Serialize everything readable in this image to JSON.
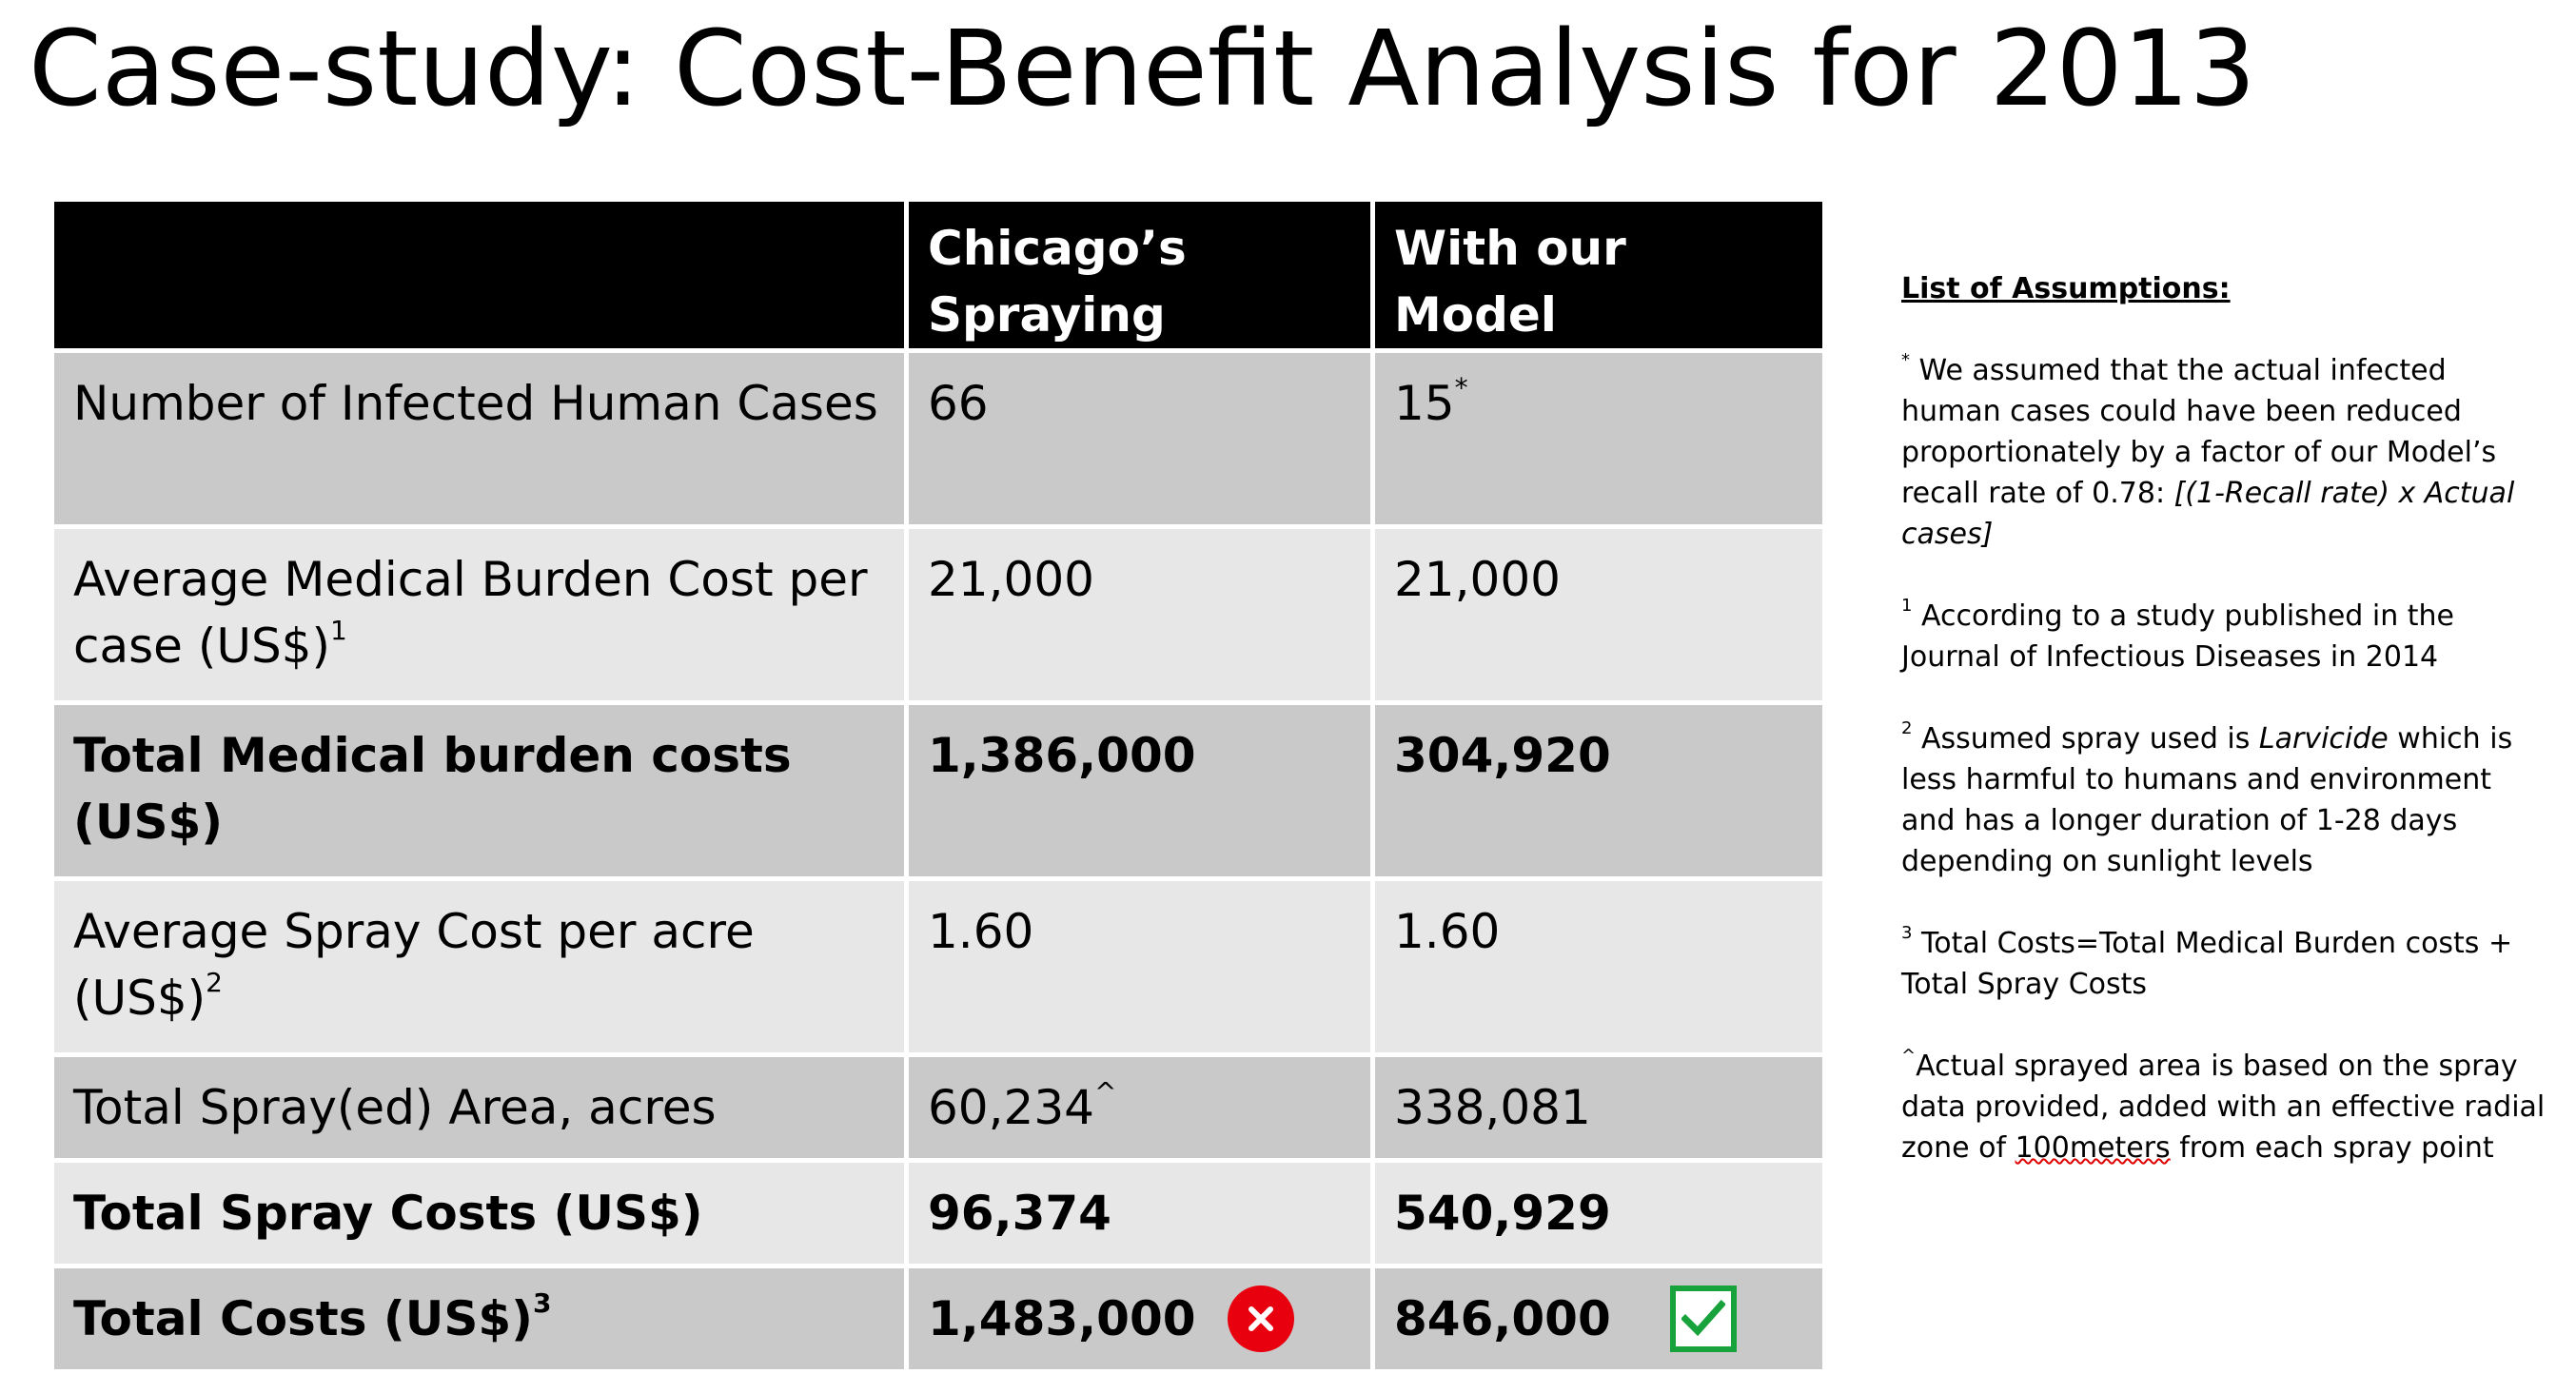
{
  "title": "Case-study: Cost-Benefit Analysis for 2013",
  "table": {
    "headers": [
      "",
      "Chicago’s Spraying",
      "With our Model"
    ],
    "rows": [
      {
        "label": "Number of Infected Human Cases",
        "label_sup": "",
        "chicago": "66",
        "chicago_sup": "",
        "model": "15",
        "model_sup": "*"
      },
      {
        "label": "Average Medical Burden Cost per case (US$)",
        "label_sup": "1",
        "chicago": "21,000",
        "chicago_sup": "",
        "model": "21,000",
        "model_sup": ""
      },
      {
        "label": "Total Medical burden costs (US$)",
        "label_sup": "",
        "chicago": "1,386,000",
        "chicago_sup": "",
        "model": "304,920",
        "model_sup": ""
      },
      {
        "label": "Average Spray Cost per acre (US$)",
        "label_sup": "2",
        "chicago": "1.60",
        "chicago_sup": "",
        "model": "1.60",
        "model_sup": ""
      },
      {
        "label": "Total Spray(ed) Area, acres",
        "label_sup": "",
        "chicago": "60,234",
        "chicago_sup": "^",
        "model": "338,081",
        "model_sup": ""
      },
      {
        "label": "Total Spray Costs (US$)",
        "label_sup": "",
        "chicago": "96,374",
        "chicago_sup": "",
        "model": "540,929",
        "model_sup": ""
      },
      {
        "label": "Total Costs (US$)",
        "label_sup": "3",
        "chicago": "1,483,000",
        "chicago_sup": "",
        "model": "846,000",
        "model_sup": ""
      }
    ],
    "icons": {
      "chicago_total": "x-circle-icon",
      "model_total": "checkbox-checked-icon"
    },
    "colors": {
      "header": "#000000",
      "row_dark": "#c9c9c9",
      "row_light": "#e7e7e7",
      "x_red": "#e8000f",
      "check_green": "#17a23b"
    }
  },
  "assumptions": {
    "heading": "List of Assumptions:",
    "items": [
      {
        "marker": "*",
        "text": " We assumed that the actual infected human cases could have been reduced proportionately by a factor of our Model’s recall rate of 0.78:  ",
        "italic": "[(1-Recall rate) x Actual cases]"
      },
      {
        "marker": "1",
        "text": " According to a study published in the Journal of Infectious Diseases in 2014"
      },
      {
        "marker": "2",
        "text_before": " Assumed spray used is ",
        "italic": "Larvicide",
        "text_after": " which is less harmful to humans and environment and has a longer duration of 1-28 days depending on sunlight levels"
      },
      {
        "marker": "3",
        "text": " Total Costs=Total Medical Burden costs + Total Spray Costs"
      },
      {
        "marker": "^",
        "text_before": "Actual sprayed area is based on the spray data provided, added with an effective radial zone of ",
        "squiggle": "100meters",
        "text_after": " from each spray point"
      }
    ]
  }
}
